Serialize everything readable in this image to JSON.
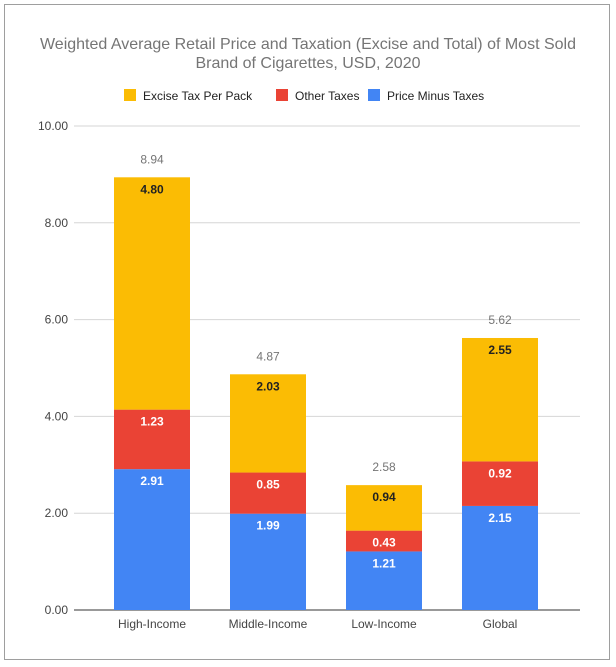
{
  "chart_data": {
    "type": "bar",
    "stacked": true,
    "title_lines": [
      "Weighted Average Retail Price and Taxation (Excise and Total) of Most Sold",
      "Brand of Cigarettes, USD, 2020"
    ],
    "categories": [
      "High-Income",
      "Middle-Income",
      "Low-Income",
      "Global"
    ],
    "series": [
      {
        "name": "Price Minus Taxes",
        "color": "#4285f4",
        "label_color": "#ffffff",
        "values": [
          2.91,
          1.99,
          1.21,
          2.15
        ],
        "labels": [
          "2.91",
          "1.99",
          "1.21",
          "2.15"
        ]
      },
      {
        "name": "Other Taxes",
        "color": "#ea4335",
        "label_color": "#ffffff",
        "values": [
          1.23,
          0.85,
          0.43,
          0.92
        ],
        "labels": [
          "1.23",
          "0.85",
          "0.43",
          "0.92"
        ]
      },
      {
        "name": "Excise Tax Per Pack",
        "color": "#fbbc04",
        "label_color": "#222222",
        "values": [
          4.8,
          2.03,
          0.94,
          2.55
        ],
        "labels": [
          "4.80",
          "2.03",
          "0.94",
          "2.55"
        ]
      }
    ],
    "legend_order": [
      "Excise Tax Per Pack",
      "Other Taxes",
      "Price Minus Taxes"
    ],
    "totals": [
      "8.94",
      "4.87",
      "2.58",
      "5.62"
    ],
    "ylim": [
      0,
      10
    ],
    "y_ticks": [
      "0.00",
      "2.00",
      "4.00",
      "6.00",
      "8.00",
      "10.00"
    ],
    "legend_position": "top",
    "grid": true
  }
}
